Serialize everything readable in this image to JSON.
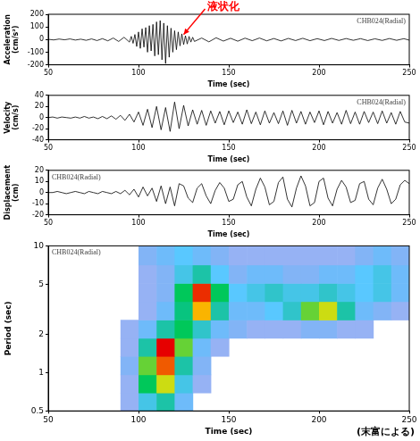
{
  "chart_data": [
    {
      "type": "line",
      "subtitle": "CHB024(Radial)",
      "x_label": "Time (sec)",
      "y_label": "Acceleration (cm/s²)",
      "x": [
        50,
        53,
        56,
        59,
        62,
        65,
        68,
        71,
        74,
        77,
        80,
        83,
        86,
        89,
        92,
        95,
        96,
        97,
        98,
        99,
        100,
        101,
        102,
        103,
        104,
        105,
        106,
        107,
        108,
        109,
        110,
        111,
        112,
        113,
        114,
        115,
        116,
        117,
        118,
        119,
        120,
        121,
        122,
        123,
        124,
        125,
        126,
        127,
        128,
        129,
        130,
        131,
        135,
        139,
        143,
        147,
        151,
        155,
        159,
        163,
        167,
        171,
        175,
        179,
        183,
        187,
        191,
        195,
        199,
        203,
        207,
        211,
        215,
        219,
        223,
        227,
        231,
        235,
        239,
        243,
        247,
        250
      ],
      "values": [
        2,
        -3,
        4,
        -2,
        5,
        -4,
        3,
        -6,
        5,
        -8,
        7,
        -10,
        12,
        -15,
        18,
        -20,
        25,
        -30,
        40,
        -55,
        60,
        -70,
        85,
        -60,
        95,
        -100,
        110,
        -90,
        120,
        -130,
        140,
        -120,
        150,
        -160,
        130,
        -190,
        110,
        -140,
        90,
        -100,
        70,
        -80,
        60,
        -50,
        45,
        -40,
        30,
        -35,
        25,
        -20,
        18,
        -15,
        12,
        -18,
        14,
        -12,
        10,
        -13,
        11,
        -9,
        12,
        -10,
        8,
        -11,
        9,
        -8,
        10,
        -9,
        7,
        -8,
        9,
        -7,
        8,
        -6,
        7,
        -8,
        6,
        -7,
        8,
        -6,
        7,
        -5
      ],
      "color": "#000000",
      "xlim": [
        50,
        250
      ],
      "xticks": [
        50,
        100,
        150,
        200,
        250
      ],
      "ylim": [
        -200,
        200
      ],
      "yticks": [
        -200,
        -100,
        0,
        100,
        200
      ],
      "grid": false,
      "annotations": [
        {
          "text": "液状化",
          "x": 125,
          "y": 40,
          "color": "#ff0000"
        }
      ]
    },
    {
      "type": "line",
      "subtitle": "CHB024(Radial)",
      "x_label": "Time (sec)",
      "y_label": "Velocity (cm/s)",
      "x": [
        50,
        52.5,
        55,
        57.5,
        60,
        62.5,
        65,
        67.5,
        70,
        72.5,
        75,
        77.5,
        80,
        82.5,
        85,
        87.5,
        90,
        92.5,
        95,
        97.5,
        100,
        102.5,
        105,
        107.5,
        110,
        112.5,
        115,
        117.5,
        120,
        122.5,
        125,
        127.5,
        130,
        132.5,
        135,
        137.5,
        140,
        142.5,
        145,
        147.5,
        150,
        152.5,
        155,
        157.5,
        160,
        162.5,
        165,
        167.5,
        170,
        172.5,
        175,
        177.5,
        180,
        182.5,
        185,
        187.5,
        190,
        192.5,
        195,
        197.5,
        200,
        202.5,
        205,
        207.5,
        210,
        212.5,
        215,
        217.5,
        220,
        222.5,
        225,
        227.5,
        230,
        232.5,
        235,
        237.5,
        240,
        242.5,
        245,
        247.5,
        250
      ],
      "values": [
        0,
        1,
        -1,
        1,
        0,
        -1,
        1,
        -1,
        2,
        -1,
        1,
        -2,
        2,
        -2,
        3,
        -3,
        4,
        -5,
        6,
        -8,
        10,
        -14,
        15,
        -18,
        20,
        -22,
        18,
        -25,
        28,
        -20,
        22,
        -15,
        14,
        -12,
        13,
        -14,
        12,
        -10,
        11,
        -13,
        12,
        -9,
        10,
        -12,
        14,
        -11,
        10,
        -13,
        12,
        -10,
        9,
        -11,
        12,
        -14,
        13,
        -10,
        11,
        -12,
        10,
        -9,
        12,
        -13,
        11,
        -10,
        9,
        -12,
        13,
        -11,
        10,
        -12,
        11,
        -9,
        10,
        -11,
        12,
        -10,
        9,
        -12,
        11,
        -8,
        -10
      ],
      "color": "#000000",
      "xlim": [
        50,
        250
      ],
      "xticks": [
        50,
        100,
        150,
        200,
        250
      ],
      "ylim": [
        -40,
        40
      ],
      "yticks": [
        -40,
        -20,
        0,
        20,
        40
      ],
      "grid": false
    },
    {
      "type": "line",
      "subtitle": "CHB024(Radial)",
      "x_label": "Time (sec)",
      "y_label": "Displacement (cm)",
      "x": [
        50,
        52.5,
        55,
        57.5,
        60,
        62.5,
        65,
        67.5,
        70,
        72.5,
        75,
        77.5,
        80,
        82.5,
        85,
        87.5,
        90,
        92.5,
        95,
        97.5,
        100,
        102.5,
        105,
        107.5,
        110,
        112.5,
        115,
        117.5,
        120,
        122.5,
        125,
        127.5,
        130,
        132.5,
        135,
        137.5,
        140,
        142.5,
        145,
        147.5,
        150,
        152.5,
        155,
        157.5,
        160,
        162.5,
        165,
        167.5,
        170,
        172.5,
        175,
        177.5,
        180,
        182.5,
        185,
        187.5,
        190,
        192.5,
        195,
        197.5,
        200,
        202.5,
        205,
        207.5,
        210,
        212.5,
        215,
        217.5,
        220,
        222.5,
        225,
        227.5,
        230,
        232.5,
        235,
        237.5,
        240,
        242.5,
        245,
        247.5,
        250
      ],
      "values": [
        0,
        0,
        1,
        0,
        -1,
        0,
        1,
        0,
        -1,
        1,
        0,
        -1,
        1,
        0,
        -1,
        1,
        -1,
        2,
        -2,
        3,
        -4,
        5,
        -3,
        4,
        -8,
        6,
        -10,
        5,
        -12,
        8,
        6,
        -5,
        -9,
        4,
        8,
        -3,
        -10,
        2,
        9,
        4,
        -8,
        -6,
        7,
        10,
        -4,
        -12,
        3,
        13,
        5,
        -11,
        -8,
        9,
        14,
        -6,
        -13,
        4,
        15,
        6,
        -12,
        -9,
        10,
        13,
        -5,
        -12,
        3,
        11,
        5,
        -9,
        -7,
        8,
        10,
        -6,
        -11,
        4,
        12,
        3,
        -10,
        -6,
        7,
        11,
        8
      ],
      "color": "#000000",
      "xlim": [
        50,
        250
      ],
      "xticks": [
        50,
        100,
        150,
        200,
        250
      ],
      "ylim": [
        -20,
        20
      ],
      "yticks": [
        -20,
        -10,
        0,
        10,
        20
      ],
      "grid": false
    },
    {
      "type": "heatmap",
      "subtitle": "CHB024(Radial)",
      "x_label": "Time (sec)",
      "y_label": "Period (sec)",
      "x": [
        55,
        65,
        75,
        85,
        95,
        105,
        115,
        125,
        135,
        145,
        155,
        165,
        175,
        185,
        195,
        205,
        215,
        225,
        235,
        245
      ],
      "y": [
        0.59,
        0.82,
        1.14,
        1.6,
        2.2,
        3.1,
        4.3,
        6.0,
        8.4
      ],
      "cells": [
        [
          0,
          0,
          0,
          0,
          0.1,
          0.3,
          0.4,
          0.2,
          0,
          0,
          0,
          0,
          0,
          0,
          0,
          0,
          0,
          0,
          0,
          0
        ],
        [
          0,
          0,
          0,
          0,
          0.1,
          0.5,
          0.7,
          0.3,
          0.1,
          0,
          0,
          0,
          0,
          0,
          0,
          0,
          0,
          0,
          0,
          0
        ],
        [
          0,
          0,
          0,
          0,
          0.15,
          0.6,
          0.9,
          0.4,
          0.15,
          0,
          0,
          0,
          0,
          0,
          0,
          0,
          0,
          0,
          0,
          0
        ],
        [
          0,
          0,
          0,
          0,
          0.1,
          0.4,
          1.0,
          0.6,
          0.2,
          0.1,
          0,
          0,
          0,
          0,
          0,
          0,
          0,
          0,
          0,
          0
        ],
        [
          0,
          0,
          0,
          0,
          0.1,
          0.2,
          0.4,
          0.5,
          0.35,
          0.2,
          0.15,
          0.1,
          0.1,
          0.1,
          0.15,
          0.15,
          0.1,
          0.1,
          0,
          0
        ],
        [
          0,
          0,
          0,
          0,
          0,
          0.1,
          0.2,
          0.45,
          0.8,
          0.4,
          0.2,
          0.2,
          0.25,
          0.35,
          0.6,
          0.7,
          0.4,
          0.2,
          0.15,
          0.1
        ],
        [
          0,
          0,
          0,
          0,
          0,
          0.1,
          0.15,
          0.5,
          0.95,
          0.5,
          0.25,
          0.3,
          0.35,
          0.3,
          0.3,
          0.35,
          0.3,
          0.25,
          0.3,
          0.2
        ],
        [
          0,
          0,
          0,
          0,
          0,
          0.1,
          0.15,
          0.3,
          0.4,
          0.25,
          0.15,
          0.2,
          0.2,
          0.15,
          0.15,
          0.2,
          0.2,
          0.25,
          0.3,
          0.2
        ],
        [
          0,
          0,
          0,
          0,
          0,
          0.15,
          0.2,
          0.25,
          0.2,
          0.15,
          0.1,
          0.1,
          0.1,
          0.1,
          0.1,
          0.1,
          0.1,
          0.15,
          0.2,
          0.15
        ]
      ],
      "xlim": [
        50,
        250
      ],
      "xticks": [
        50,
        100,
        150,
        200,
        250
      ],
      "ylim": [
        0.5,
        10
      ],
      "yticks": [
        0.5,
        1,
        2,
        5,
        10
      ],
      "log": "y",
      "grid": false
    }
  ],
  "source": "(末富による)"
}
